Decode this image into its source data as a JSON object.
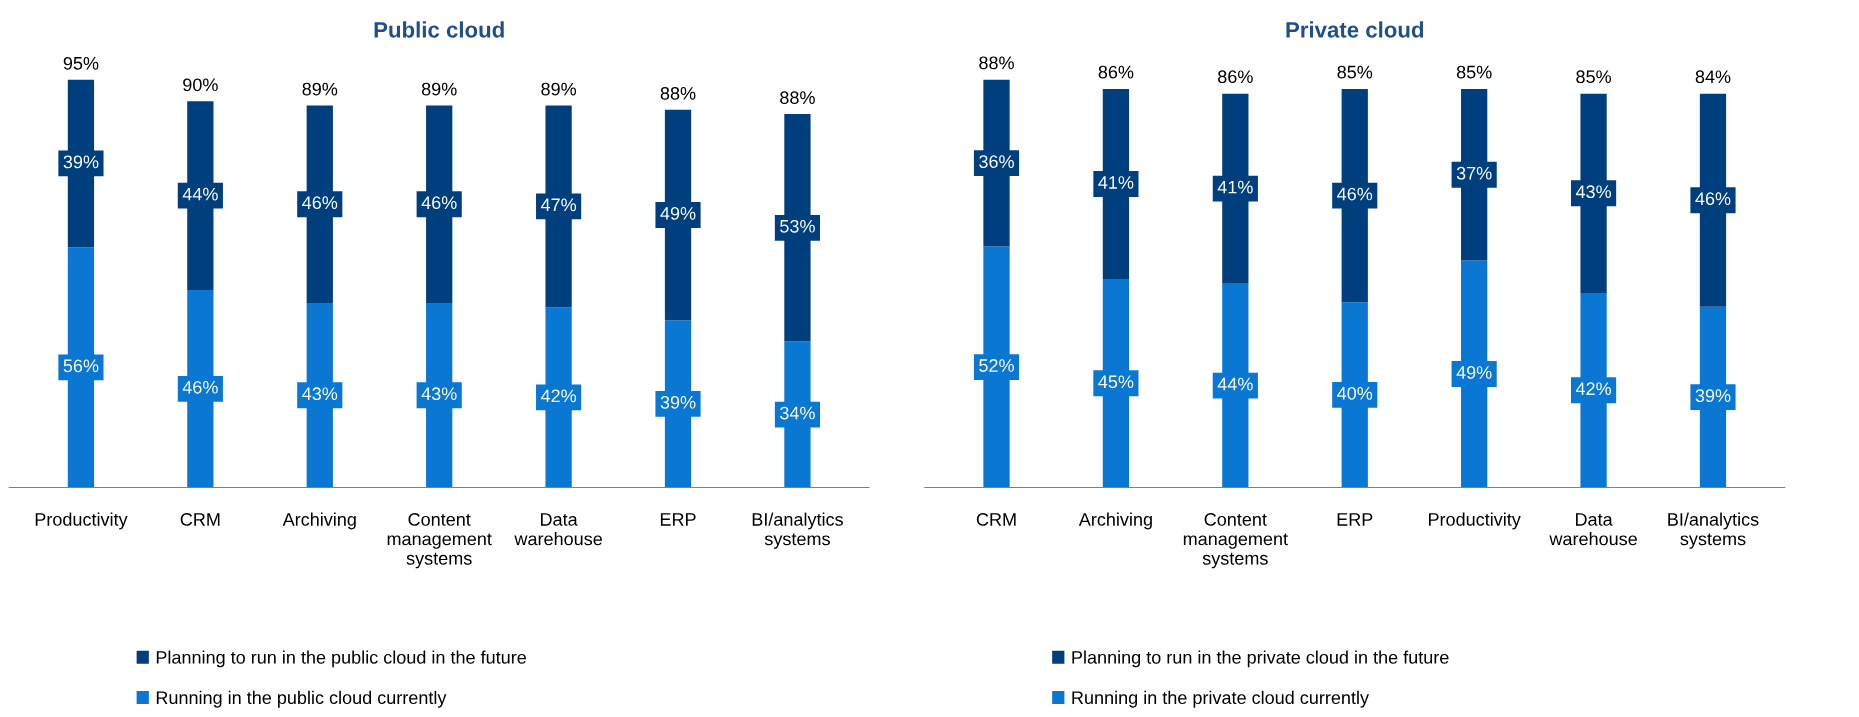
{
  "chart_data": [
    {
      "type": "bar",
      "title": "Public cloud",
      "stacked": true,
      "legend": "bottom",
      "categories": [
        "Productivity",
        "CRM",
        "Archiving",
        "Content management systems",
        "Data warehouse",
        "ERP",
        "BI/analytics systems"
      ],
      "series": [
        {
          "name": "Running in the public cloud currently",
          "color": "#0a78d2",
          "values": [
            56,
            46,
            43,
            43,
            42,
            39,
            34
          ],
          "value_labels": [
            "56%",
            "46%",
            "43%",
            "43%",
            "42%",
            "39%",
            "34%"
          ]
        },
        {
          "name": "Planning to run in the public cloud in the future",
          "color": "#003f7d",
          "values": [
            39,
            44,
            46,
            46,
            47,
            49,
            53
          ],
          "value_labels": [
            "39%",
            "44%",
            "46%",
            "46%",
            "47%",
            "49%",
            "53%"
          ]
        }
      ],
      "totals": [
        "95%",
        "90%",
        "89%",
        "89%",
        "89%",
        "88%",
        "88%"
      ]
    },
    {
      "type": "bar",
      "title": "Private cloud",
      "stacked": true,
      "legend": "bottom",
      "categories": [
        "CRM",
        "Archiving",
        "Content management systems",
        "ERP",
        "Productivity",
        "Data warehouse",
        "BI/analytics systems"
      ],
      "series": [
        {
          "name": "Running in the private cloud currently",
          "color": "#0a78d2",
          "values": [
            52,
            45,
            44,
            40,
            49,
            42,
            39
          ],
          "value_labels": [
            "52%",
            "45%",
            "44%",
            "40%",
            "49%",
            "42%",
            "39%"
          ]
        },
        {
          "name": "Planning to run in the private cloud in the future",
          "color": "#003f7d",
          "values": [
            36,
            41,
            41,
            46,
            37,
            43,
            46
          ],
          "value_labels": [
            "36%",
            "41%",
            "41%",
            "46%",
            "37%",
            "43%",
            "46%"
          ]
        }
      ],
      "totals": [
        "88%",
        "86%",
        "86%",
        "85%",
        "85%",
        "85%",
        "84%"
      ]
    }
  ]
}
